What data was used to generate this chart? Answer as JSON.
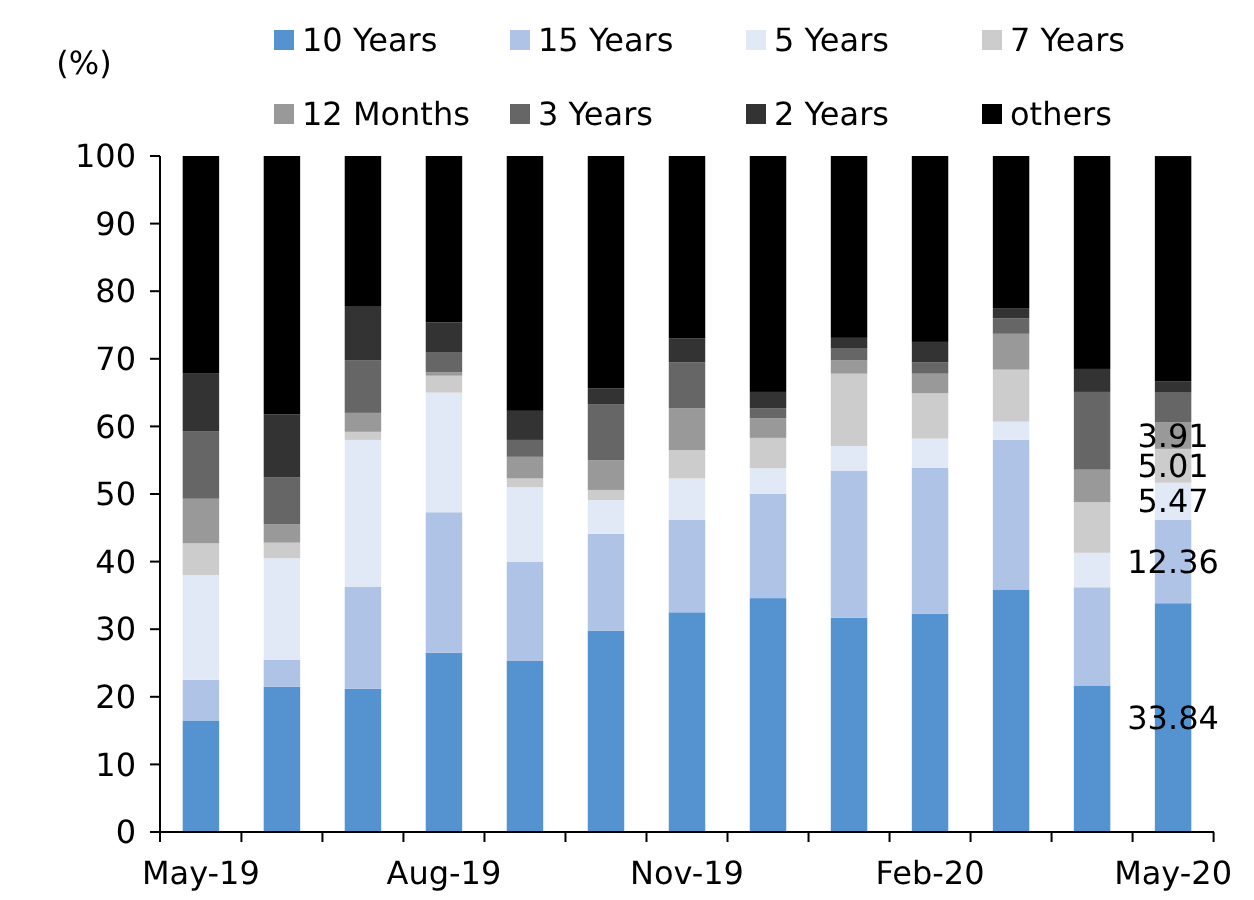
{
  "chart_data": {
    "type": "bar",
    "stacked": true,
    "ylabel": "(%)",
    "categories": [
      "May-19",
      null,
      null,
      "Aug-19",
      null,
      null,
      "Nov-19",
      null,
      null,
      "Feb-20",
      null,
      null,
      "May-20"
    ],
    "series": [
      {
        "name": "10 Years",
        "color": "#5592d0",
        "values": [
          16.5,
          21.5,
          21.2,
          26.5,
          25.3,
          29.8,
          32.5,
          34.6,
          31.7,
          32.3,
          35.8,
          21.6,
          33.84
        ],
        "value_labels": [
          null,
          null,
          null,
          null,
          null,
          null,
          null,
          null,
          null,
          null,
          null,
          null,
          "33.84"
        ]
      },
      {
        "name": "15 Years",
        "color": "#aec3e5",
        "values": [
          6,
          4,
          15.1,
          20.8,
          14.7,
          14.3,
          13.7,
          15.4,
          21.7,
          21.6,
          22.2,
          14.6,
          12.36
        ],
        "value_labels": [
          null,
          null,
          null,
          null,
          null,
          null,
          null,
          null,
          null,
          null,
          null,
          null,
          "12.36"
        ]
      },
      {
        "name": "5 Years",
        "color": "#e2e9f6",
        "values": [
          15.5,
          15,
          21.7,
          17.7,
          11,
          5,
          6.1,
          3.8,
          3.7,
          4.3,
          2.7,
          5.1,
          5.47
        ],
        "value_labels": [
          null,
          null,
          null,
          null,
          null,
          null,
          null,
          null,
          null,
          null,
          null,
          null,
          "5.47"
        ]
      },
      {
        "name": "7 Years",
        "color": "#cccccc",
        "values": [
          4.7,
          2.3,
          1.2,
          2.5,
          1.3,
          1.5,
          4.2,
          4.5,
          10.7,
          6.7,
          7.7,
          7.5,
          5.01
        ],
        "value_labels": [
          null,
          null,
          null,
          null,
          null,
          null,
          null,
          null,
          null,
          null,
          null,
          null,
          "5.01"
        ]
      },
      {
        "name": "12 Months",
        "color": "#999999",
        "values": [
          6.6,
          2.7,
          2.8,
          0.5,
          3.2,
          4.4,
          6.2,
          2.9,
          2,
          2.9,
          5.3,
          4.8,
          3.91
        ],
        "value_labels": [
          null,
          null,
          null,
          null,
          null,
          null,
          null,
          null,
          null,
          null,
          null,
          null,
          "3.91"
        ]
      },
      {
        "name": "3 Years",
        "color": "#666666",
        "values": [
          10,
          7,
          7.8,
          3,
          2.5,
          8.3,
          6.8,
          1.5,
          1.7,
          1.7,
          2.3,
          11.5,
          4.4
        ]
      },
      {
        "name": "2 Years",
        "color": "#333333",
        "values": [
          8.5,
          9.3,
          7.9,
          4.4,
          4.3,
          2.3,
          3.5,
          2.4,
          1.6,
          3.0,
          1.5,
          3.4,
          1.7
        ]
      },
      {
        "name": "others",
        "color": "#000000",
        "values": [
          32.2,
          38.2,
          22.3,
          24.6,
          37.7,
          34.4,
          27,
          34.9,
          26.9,
          27.5,
          22.5,
          31.5,
          33.3
        ]
      }
    ],
    "ylim": [
      0,
      100
    ],
    "yticks": [
      0,
      10,
      20,
      30,
      40,
      50,
      60,
      70,
      80,
      90,
      100
    ],
    "grid": false,
    "legend": "top"
  }
}
